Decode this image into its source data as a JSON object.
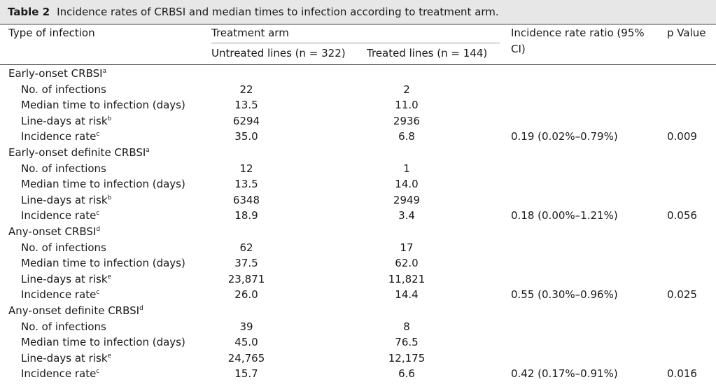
{
  "caption": {
    "label": "Table 2",
    "text": "Incidence rates of CRBSI and median times to infection according to treatment arm."
  },
  "header": {
    "col_type": "Type of infection",
    "col_arm": "Treatment arm",
    "col_untreated": "Untreated lines (n = 322)",
    "col_treated": "Treated lines (n = 144)",
    "col_irr_line1": "Incidence rate ratio (95%",
    "col_irr_line2": "CI)",
    "col_p": "p Value"
  },
  "groups": [
    {
      "title": "Early-onset CRBSI",
      "sup": "a",
      "rows": [
        {
          "label": "No. of infections",
          "sup": "",
          "untreated": "22",
          "treated": "2"
        },
        {
          "label": "Median time to infection (days)",
          "sup": "",
          "untreated": "13.5",
          "treated": "11.0"
        },
        {
          "label": "Line-days at risk",
          "sup": "b",
          "untreated": "6294",
          "treated": "2936"
        },
        {
          "label": "Incidence rate",
          "sup": "c",
          "untreated": "35.0",
          "treated": "6.8",
          "irr": "0.19 (0.02%–0.79%)",
          "p": "0.009"
        }
      ]
    },
    {
      "title": "Early-onset definite CRBSI",
      "sup": "a",
      "rows": [
        {
          "label": "No. of infections",
          "sup": "",
          "untreated": "12",
          "treated": "1"
        },
        {
          "label": "Median time to infection (days)",
          "sup": "",
          "untreated": "13.5",
          "treated": "14.0"
        },
        {
          "label": "Line-days at risk",
          "sup": "b",
          "untreated": "6348",
          "treated": "2949"
        },
        {
          "label": "Incidence rate",
          "sup": "c",
          "untreated": "18.9",
          "treated": "3.4",
          "irr": "0.18 (0.00%–1.21%)",
          "p": "0.056"
        }
      ]
    },
    {
      "title": "Any-onset CRBSI",
      "sup": "d",
      "rows": [
        {
          "label": "No. of infections",
          "sup": "",
          "untreated": "62",
          "treated": "17"
        },
        {
          "label": "Median time to infection (days)",
          "sup": "",
          "untreated": "37.5",
          "treated": "62.0"
        },
        {
          "label": "Line-days at risk",
          "sup": "e",
          "untreated": "23,871",
          "treated": "11,821"
        },
        {
          "label": "Incidence rate",
          "sup": "c",
          "untreated": "26.0",
          "treated": "14.4",
          "irr": "0.55 (0.30%–0.96%)",
          "p": "0.025"
        }
      ]
    },
    {
      "title": "Any-onset definite CRBSI",
      "sup": "d",
      "rows": [
        {
          "label": "No. of infections",
          "sup": "",
          "untreated": "39",
          "treated": "8"
        },
        {
          "label": "Median time to infection (days)",
          "sup": "",
          "untreated": "45.0",
          "treated": "76.5"
        },
        {
          "label": "Line-days at risk",
          "sup": "e",
          "untreated": "24,765",
          "treated": "12,175"
        },
        {
          "label": "Incidence rate",
          "sup": "c",
          "untreated": "15.7",
          "treated": "6.6",
          "irr": "0.42 (0.17%–0.91%)",
          "p": "0.016"
        }
      ]
    }
  ]
}
